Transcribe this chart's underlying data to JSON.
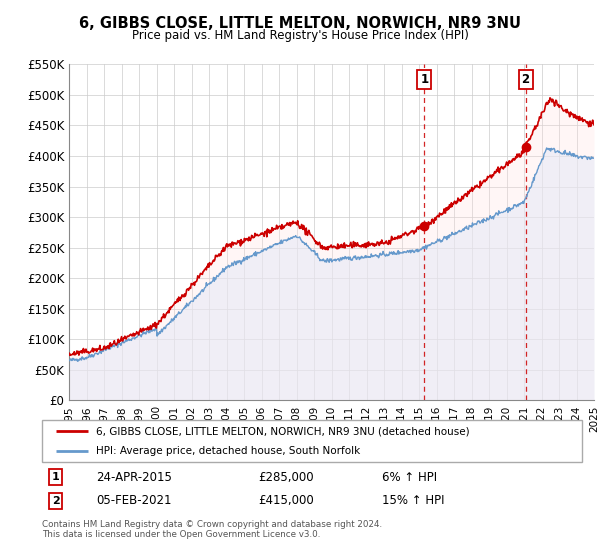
{
  "title": "6, GIBBS CLOSE, LITTLE MELTON, NORWICH, NR9 3NU",
  "subtitle": "Price paid vs. HM Land Registry's House Price Index (HPI)",
  "ylim": [
    0,
    550000
  ],
  "yticks": [
    0,
    50000,
    100000,
    150000,
    200000,
    250000,
    300000,
    350000,
    400000,
    450000,
    500000,
    550000
  ],
  "ytick_labels": [
    "£0",
    "£50K",
    "£100K",
    "£150K",
    "£200K",
    "£250K",
    "£300K",
    "£350K",
    "£400K",
    "£450K",
    "£500K",
    "£550K"
  ],
  "xlim_start": 1995,
  "xlim_end": 2025,
  "xticks": [
    1995,
    1996,
    1997,
    1998,
    1999,
    2000,
    2001,
    2002,
    2003,
    2004,
    2005,
    2006,
    2007,
    2008,
    2009,
    2010,
    2011,
    2012,
    2013,
    2014,
    2015,
    2016,
    2017,
    2018,
    2019,
    2020,
    2021,
    2022,
    2023,
    2024,
    2025
  ],
  "sale1_x": 2015.31,
  "sale1_y": 285000,
  "sale2_x": 2021.09,
  "sale2_y": 415000,
  "sale1_date": "24-APR-2015",
  "sale1_price": "£285,000",
  "sale1_hpi": "6% ↑ HPI",
  "sale2_date": "05-FEB-2021",
  "sale2_price": "£415,000",
  "sale2_hpi": "15% ↑ HPI",
  "red_color": "#cc0000",
  "blue_color": "#6699cc",
  "fill_blue": "#ddeeff",
  "fill_red": "#ffdddd",
  "grid_color": "#cccccc",
  "legend1": "6, GIBBS CLOSE, LITTLE MELTON, NORWICH, NR9 3NU (detached house)",
  "legend2": "HPI: Average price, detached house, South Norfolk",
  "footer": "Contains HM Land Registry data © Crown copyright and database right 2024.\nThis data is licensed under the Open Government Licence v3.0."
}
